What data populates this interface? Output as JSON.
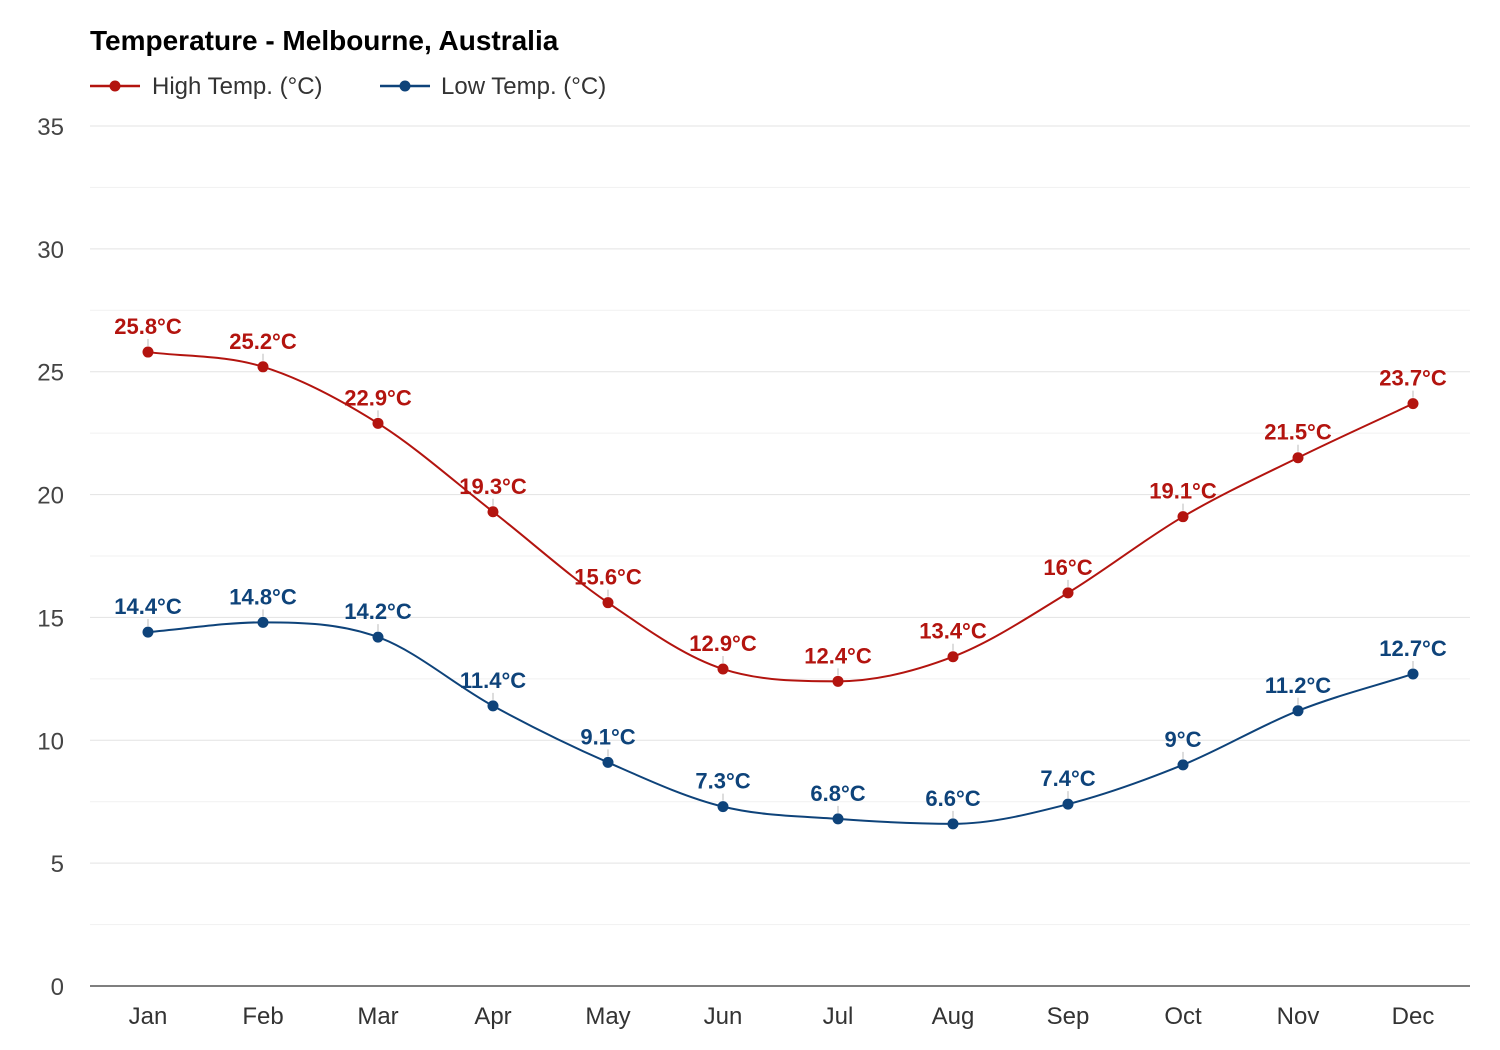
{
  "chart_data": {
    "type": "line",
    "title": "Temperature - Melbourne, Australia",
    "xlabel": "",
    "ylabel": "",
    "categories": [
      "Jan",
      "Feb",
      "Mar",
      "Apr",
      "May",
      "Jun",
      "Jul",
      "Aug",
      "Sep",
      "Oct",
      "Nov",
      "Dec"
    ],
    "ylim": [
      0,
      35
    ],
    "yticks": [
      0,
      5,
      10,
      15,
      20,
      25,
      30,
      35
    ],
    "grid": true,
    "legend": "top-left",
    "series": [
      {
        "name": "High Temp. (°C)",
        "color": "#b3140f",
        "values": [
          25.8,
          25.2,
          22.9,
          19.3,
          15.6,
          12.9,
          12.4,
          13.4,
          16,
          19.1,
          21.5,
          23.7
        ],
        "labels": [
          "25.8°C",
          "25.2°C",
          "22.9°C",
          "19.3°C",
          "15.6°C",
          "12.9°C",
          "12.4°C",
          "13.4°C",
          "16°C",
          "19.1°C",
          "21.5°C",
          "23.7°C"
        ]
      },
      {
        "name": "Low Temp. (°C)",
        "color": "#0e437a",
        "values": [
          14.4,
          14.8,
          14.2,
          11.4,
          9.1,
          7.3,
          6.8,
          6.6,
          7.4,
          9,
          11.2,
          12.7
        ],
        "labels": [
          "14.4°C",
          "14.8°C",
          "14.2°C",
          "11.4°C",
          "9.1°C",
          "7.3°C",
          "6.8°C",
          "6.6°C",
          "7.4°C",
          "9°C",
          "11.2°C",
          "12.7°C"
        ]
      }
    ]
  }
}
